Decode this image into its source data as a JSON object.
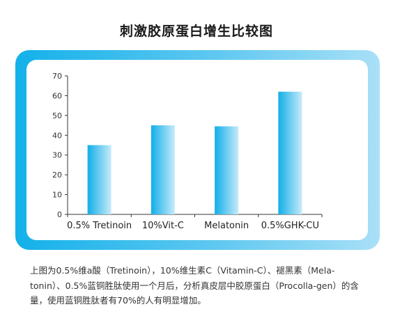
{
  "title": "刺激胶原蛋白增生比较图",
  "caption": "上图为0.5%维a酸（Tretinoin），10%维生素C（Vitamin-C）、褪黑素（Mela-tonin）、0.5%蓝铜胜肽使用一个月后，分析真皮层中胶原蛋白（Procolla-gen）的含量，使用蓝铜胜肽者有70%的人有明显增加。",
  "colors": {
    "bar_dark": "#12aee8",
    "bar_light": "#c6ebfa",
    "frame_start": "#13b1ea",
    "frame_end": "#a9e0f7"
  },
  "chart_data": {
    "type": "bar",
    "title": "刺激胶原蛋白增生比较图",
    "categories": [
      "0.5% Tretinoin",
      "10%Vit-C",
      "Melatonin",
      "0.5%GHK-CU"
    ],
    "values": [
      35,
      45,
      44.5,
      62
    ],
    "yticks": [
      0,
      10,
      20,
      30,
      40,
      50,
      60,
      70
    ],
    "ylim": [
      0,
      70
    ],
    "grid": false,
    "legend": "none"
  }
}
